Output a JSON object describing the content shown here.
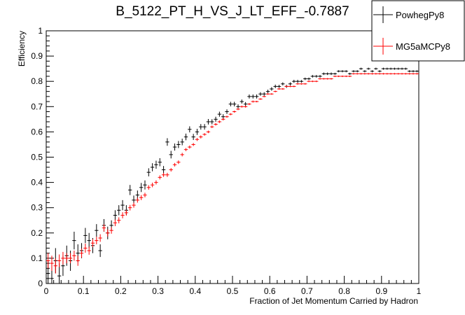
{
  "chart_data": {
    "type": "scatter",
    "title": "B_5122_PT_H_VS_J_LT_EFF_-0.7887",
    "xlabel": "Fraction of Jet Momentum Carried by Hadron",
    "ylabel": "Efficiency",
    "xlim": [
      0,
      1
    ],
    "ylim": [
      0,
      1
    ],
    "x_ticks": [
      "0",
      "0.1",
      "0.2",
      "0.3",
      "0.4",
      "0.5",
      "0.6",
      "0.7",
      "0.8",
      "0.9",
      "1"
    ],
    "y_ticks": [
      "0",
      "0.1",
      "0.2",
      "0.3",
      "0.4",
      "0.5",
      "0.6",
      "0.7",
      "0.8",
      "0.9",
      "1"
    ],
    "grid": false,
    "legend_position": "top-right",
    "series": [
      {
        "name": "PowhegPy8",
        "color": "#000000",
        "x": [
          0.005,
          0.015,
          0.025,
          0.035,
          0.045,
          0.055,
          0.065,
          0.075,
          0.085,
          0.095,
          0.105,
          0.115,
          0.125,
          0.135,
          0.145,
          0.155,
          0.165,
          0.175,
          0.185,
          0.195,
          0.205,
          0.215,
          0.225,
          0.235,
          0.245,
          0.255,
          0.265,
          0.275,
          0.285,
          0.295,
          0.305,
          0.315,
          0.325,
          0.335,
          0.345,
          0.355,
          0.365,
          0.375,
          0.385,
          0.395,
          0.405,
          0.415,
          0.425,
          0.435,
          0.445,
          0.455,
          0.465,
          0.475,
          0.485,
          0.495,
          0.505,
          0.515,
          0.525,
          0.535,
          0.545,
          0.555,
          0.565,
          0.575,
          0.585,
          0.595,
          0.605,
          0.615,
          0.625,
          0.635,
          0.645,
          0.655,
          0.665,
          0.675,
          0.685,
          0.695,
          0.705,
          0.715,
          0.725,
          0.735,
          0.745,
          0.755,
          0.765,
          0.775,
          0.785,
          0.795,
          0.805,
          0.815,
          0.825,
          0.835,
          0.845,
          0.855,
          0.865,
          0.875,
          0.885,
          0.895,
          0.905,
          0.915,
          0.925,
          0.935,
          0.945,
          0.955,
          0.965,
          0.975,
          0.985,
          0.995
        ],
        "y": [
          0.04,
          0.02,
          0.09,
          0.03,
          0.07,
          0.11,
          0.09,
          0.17,
          0.12,
          0.13,
          0.19,
          0.17,
          0.15,
          0.21,
          0.13,
          0.23,
          0.2,
          0.23,
          0.27,
          0.29,
          0.31,
          0.29,
          0.37,
          0.33,
          0.35,
          0.38,
          0.39,
          0.44,
          0.46,
          0.47,
          0.48,
          0.45,
          0.56,
          0.51,
          0.54,
          0.55,
          0.56,
          0.58,
          0.61,
          0.58,
          0.6,
          0.62,
          0.62,
          0.64,
          0.64,
          0.65,
          0.67,
          0.66,
          0.68,
          0.71,
          0.71,
          0.7,
          0.72,
          0.71,
          0.74,
          0.74,
          0.74,
          0.75,
          0.75,
          0.76,
          0.77,
          0.78,
          0.78,
          0.79,
          0.78,
          0.79,
          0.8,
          0.8,
          0.8,
          0.81,
          0.81,
          0.82,
          0.82,
          0.82,
          0.83,
          0.83,
          0.83,
          0.83,
          0.84,
          0.84,
          0.84,
          0.83,
          0.84,
          0.84,
          0.85,
          0.84,
          0.85,
          0.84,
          0.85,
          0.84,
          0.85,
          0.85,
          0.85,
          0.85,
          0.85,
          0.85,
          0.85,
          0.84,
          0.84,
          0.84
        ],
        "yerr": [
          0.05,
          0.06,
          0.05,
          0.05,
          0.04,
          0.04,
          0.04,
          0.035,
          0.035,
          0.03,
          0.03,
          0.03,
          0.03,
          0.025,
          0.025,
          0.025,
          0.025,
          0.02,
          0.02,
          0.02,
          0.02,
          0.02,
          0.02,
          0.018,
          0.018,
          0.018,
          0.018,
          0.016,
          0.016,
          0.016,
          0.016,
          0.015,
          0.015,
          0.015,
          0.014,
          0.014,
          0.013,
          0.013,
          0.012,
          0.012,
          0.012,
          0.011,
          0.011,
          0.011,
          0.01,
          0.01,
          0.01,
          0.01,
          0.009,
          0.009,
          0.009,
          0.009,
          0.008,
          0.008,
          0.008,
          0.008,
          0.008,
          0.007,
          0.007,
          0.007,
          0.007,
          0.007,
          0.006,
          0.006,
          0.006,
          0.006,
          0.006,
          0.006,
          0.005,
          0.005,
          0.005,
          0.005,
          0.005,
          0.005,
          0.005,
          0.005,
          0.005,
          0.004,
          0.004,
          0.004,
          0.004,
          0.004,
          0.004,
          0.004,
          0.004,
          0.004,
          0.004,
          0.004,
          0.004,
          0.004,
          0.004,
          0.004,
          0.004,
          0.004,
          0.004,
          0.004,
          0.004,
          0.004,
          0.004,
          0.004
        ]
      },
      {
        "name": "MG5aMCPy8",
        "color": "#ff0000",
        "x": [
          0.005,
          0.015,
          0.025,
          0.035,
          0.045,
          0.055,
          0.065,
          0.075,
          0.085,
          0.095,
          0.105,
          0.115,
          0.125,
          0.135,
          0.145,
          0.155,
          0.165,
          0.175,
          0.185,
          0.195,
          0.205,
          0.215,
          0.225,
          0.235,
          0.245,
          0.255,
          0.265,
          0.275,
          0.285,
          0.295,
          0.305,
          0.315,
          0.325,
          0.335,
          0.345,
          0.355,
          0.365,
          0.375,
          0.385,
          0.395,
          0.405,
          0.415,
          0.425,
          0.435,
          0.445,
          0.455,
          0.465,
          0.475,
          0.485,
          0.495,
          0.505,
          0.515,
          0.525,
          0.535,
          0.545,
          0.555,
          0.565,
          0.575,
          0.585,
          0.595,
          0.605,
          0.615,
          0.625,
          0.635,
          0.645,
          0.655,
          0.665,
          0.675,
          0.685,
          0.695,
          0.705,
          0.715,
          0.725,
          0.735,
          0.745,
          0.755,
          0.765,
          0.775,
          0.785,
          0.795,
          0.805,
          0.815,
          0.825,
          0.835,
          0.845,
          0.855,
          0.865,
          0.875,
          0.885,
          0.895,
          0.905,
          0.915,
          0.925,
          0.935,
          0.945,
          0.955,
          0.965,
          0.975,
          0.985,
          0.995
        ],
        "y": [
          0.09,
          0.08,
          0.07,
          0.09,
          0.1,
          0.1,
          0.1,
          0.11,
          0.09,
          0.12,
          0.14,
          0.13,
          0.16,
          0.17,
          0.18,
          0.22,
          0.2,
          0.21,
          0.24,
          0.25,
          0.27,
          0.28,
          0.3,
          0.31,
          0.33,
          0.34,
          0.35,
          0.38,
          0.39,
          0.4,
          0.42,
          0.43,
          0.43,
          0.45,
          0.47,
          0.48,
          0.51,
          0.53,
          0.54,
          0.55,
          0.57,
          0.58,
          0.59,
          0.6,
          0.62,
          0.63,
          0.64,
          0.65,
          0.66,
          0.67,
          0.68,
          0.69,
          0.7,
          0.7,
          0.71,
          0.72,
          0.72,
          0.73,
          0.74,
          0.75,
          0.75,
          0.76,
          0.77,
          0.77,
          0.78,
          0.78,
          0.78,
          0.79,
          0.79,
          0.79,
          0.8,
          0.8,
          0.8,
          0.81,
          0.81,
          0.81,
          0.81,
          0.82,
          0.82,
          0.82,
          0.82,
          0.82,
          0.83,
          0.83,
          0.83,
          0.83,
          0.83,
          0.83,
          0.83,
          0.83,
          0.83,
          0.83,
          0.83,
          0.83,
          0.83,
          0.83,
          0.83,
          0.83,
          0.83,
          0.83
        ],
        "yerr": [
          0.03,
          0.03,
          0.03,
          0.025,
          0.025,
          0.02,
          0.02,
          0.02,
          0.02,
          0.018,
          0.018,
          0.016,
          0.016,
          0.015,
          0.015,
          0.014,
          0.014,
          0.013,
          0.013,
          0.012,
          0.012,
          0.011,
          0.011,
          0.01,
          0.01,
          0.01,
          0.009,
          0.009,
          0.009,
          0.008,
          0.008,
          0.008,
          0.008,
          0.007,
          0.007,
          0.007,
          0.007,
          0.006,
          0.006,
          0.006,
          0.006,
          0.006,
          0.005,
          0.005,
          0.005,
          0.005,
          0.005,
          0.005,
          0.004,
          0.004,
          0.004,
          0.004,
          0.004,
          0.004,
          0.004,
          0.004,
          0.003,
          0.003,
          0.003,
          0.003,
          0.003,
          0.003,
          0.003,
          0.003,
          0.003,
          0.003,
          0.003,
          0.003,
          0.003,
          0.003,
          0.003,
          0.003,
          0.003,
          0.003,
          0.003,
          0.003,
          0.003,
          0.003,
          0.003,
          0.003,
          0.003,
          0.003,
          0.003,
          0.003,
          0.003,
          0.003,
          0.003,
          0.003,
          0.003,
          0.003,
          0.003,
          0.003,
          0.003,
          0.003,
          0.003,
          0.003,
          0.003,
          0.003,
          0.003,
          0.003
        ]
      }
    ]
  }
}
